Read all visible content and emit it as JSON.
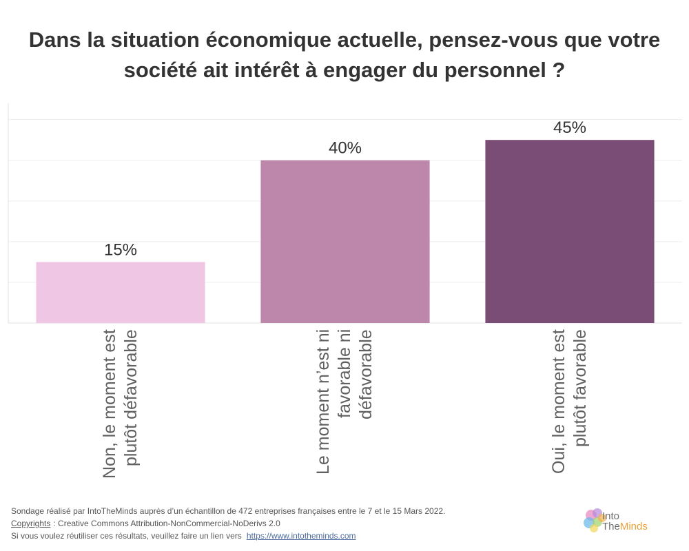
{
  "chart_data": {
    "type": "bar",
    "title": "Dans la situation économique actuelle, pensez-vous que votre société ait intérêt à engager du personnel ?",
    "categories": [
      "Non, le moment est plutôt défavorable",
      "Le moment n’est ni favorable ni défavorable",
      "Oui, le moment est plutôt favorable"
    ],
    "values": [
      15,
      40,
      45
    ],
    "value_labels": [
      "15%",
      "40%",
      "45%"
    ],
    "colors": [
      "#EFC7E5",
      "#BD86AB",
      "#7A4D77"
    ],
    "ylim": [
      0,
      54
    ],
    "grid": true,
    "grid_step": 10
  },
  "footer": {
    "source": "Sondage réalisé par IntoTheMinds auprès d’un échantillon de 472 entreprises françaises entre le 7 et le 15 Mars 2022.",
    "copyright_label": "Copyrights",
    "copyright_text": ": Creative Commons Attribution-NonCommercial-NoDerivs 2.0",
    "reuse_text": "Si vous voulez réutiliser ces résultats, veuillez faire un lien vers",
    "reuse_link": "https://www.intotheminds.com"
  },
  "logo": {
    "into": "Into",
    "the": "The",
    "minds": "Minds",
    "icon": "brain-logo-icon"
  },
  "theme": {
    "link": "#4A6B9C",
    "brand_accent": "#E9A23B"
  }
}
